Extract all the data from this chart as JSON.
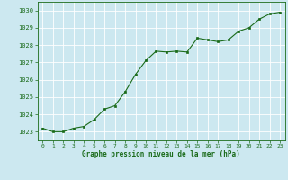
{
  "x": [
    0,
    1,
    2,
    3,
    4,
    5,
    6,
    7,
    8,
    9,
    10,
    11,
    12,
    13,
    14,
    15,
    16,
    17,
    18,
    19,
    20,
    21,
    22,
    23
  ],
  "y": [
    1023.2,
    1023.0,
    1023.0,
    1023.2,
    1023.3,
    1023.7,
    1024.3,
    1024.5,
    1025.3,
    1026.3,
    1027.1,
    1027.65,
    1027.6,
    1027.65,
    1027.6,
    1028.4,
    1028.3,
    1028.2,
    1028.3,
    1028.8,
    1029.0,
    1029.5,
    1029.8,
    1029.9
  ],
  "line_color": "#1a6b1a",
  "marker_color": "#1a6b1a",
  "bg_color": "#cce8f0",
  "grid_color": "#b8d8e0",
  "xlabel": "Graphe pression niveau de la mer (hPa)",
  "xlabel_color": "#1a6b1a",
  "tick_color": "#1a6b1a",
  "ylim": [
    1022.5,
    1030.5
  ],
  "yticks": [
    1023,
    1024,
    1025,
    1026,
    1027,
    1028,
    1029,
    1030
  ],
  "xlim": [
    -0.5,
    23.5
  ],
  "xticks": [
    0,
    1,
    2,
    3,
    4,
    5,
    6,
    7,
    8,
    9,
    10,
    11,
    12,
    13,
    14,
    15,
    16,
    17,
    18,
    19,
    20,
    21,
    22,
    23
  ]
}
